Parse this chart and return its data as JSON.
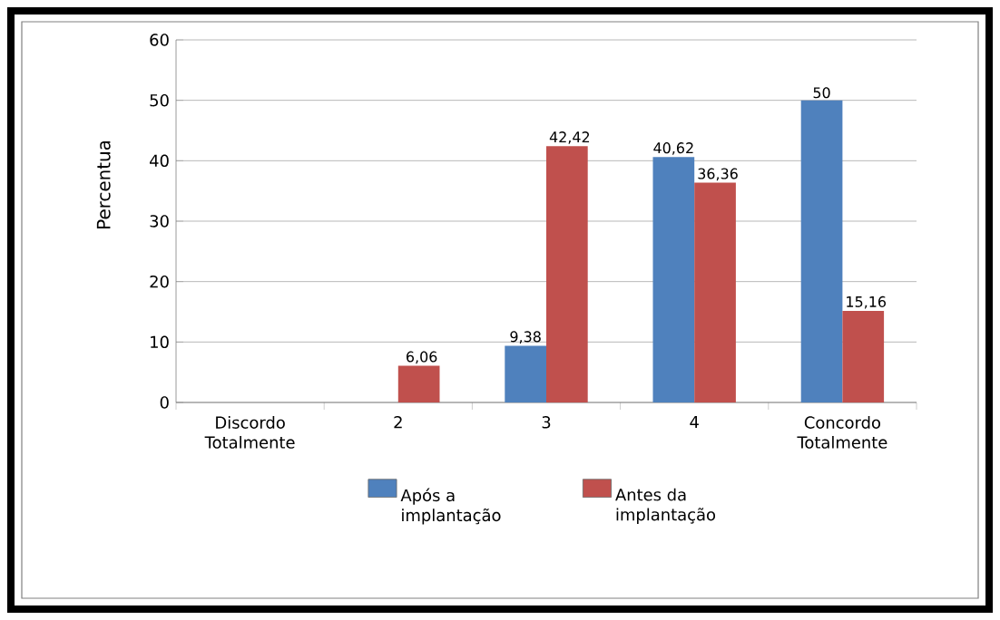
{
  "chart_data": {
    "type": "bar",
    "ylabel": "Percentua",
    "categories": [
      "Discordo Totalmente",
      "2",
      "3",
      "4",
      "Concordo Totalmente"
    ],
    "series": [
      {
        "name": "Após  a implantação",
        "color": "#4f81bd",
        "values": [
          0,
          0,
          9.38,
          40.62,
          50
        ],
        "value_labels": [
          null,
          null,
          "9,38",
          "40,62",
          "50"
        ]
      },
      {
        "name": "Antes da implantação",
        "color": "#c0504d",
        "values": [
          0,
          6.06,
          42.42,
          36.36,
          15.16
        ],
        "value_labels": [
          null,
          "6,06",
          "42,42",
          "36,36",
          "15,16"
        ]
      }
    ],
    "ylim": [
      0,
      60
    ],
    "yticks": [
      0,
      10,
      20,
      30,
      40,
      50,
      60
    ],
    "grid": "y",
    "legend": "bottom"
  }
}
